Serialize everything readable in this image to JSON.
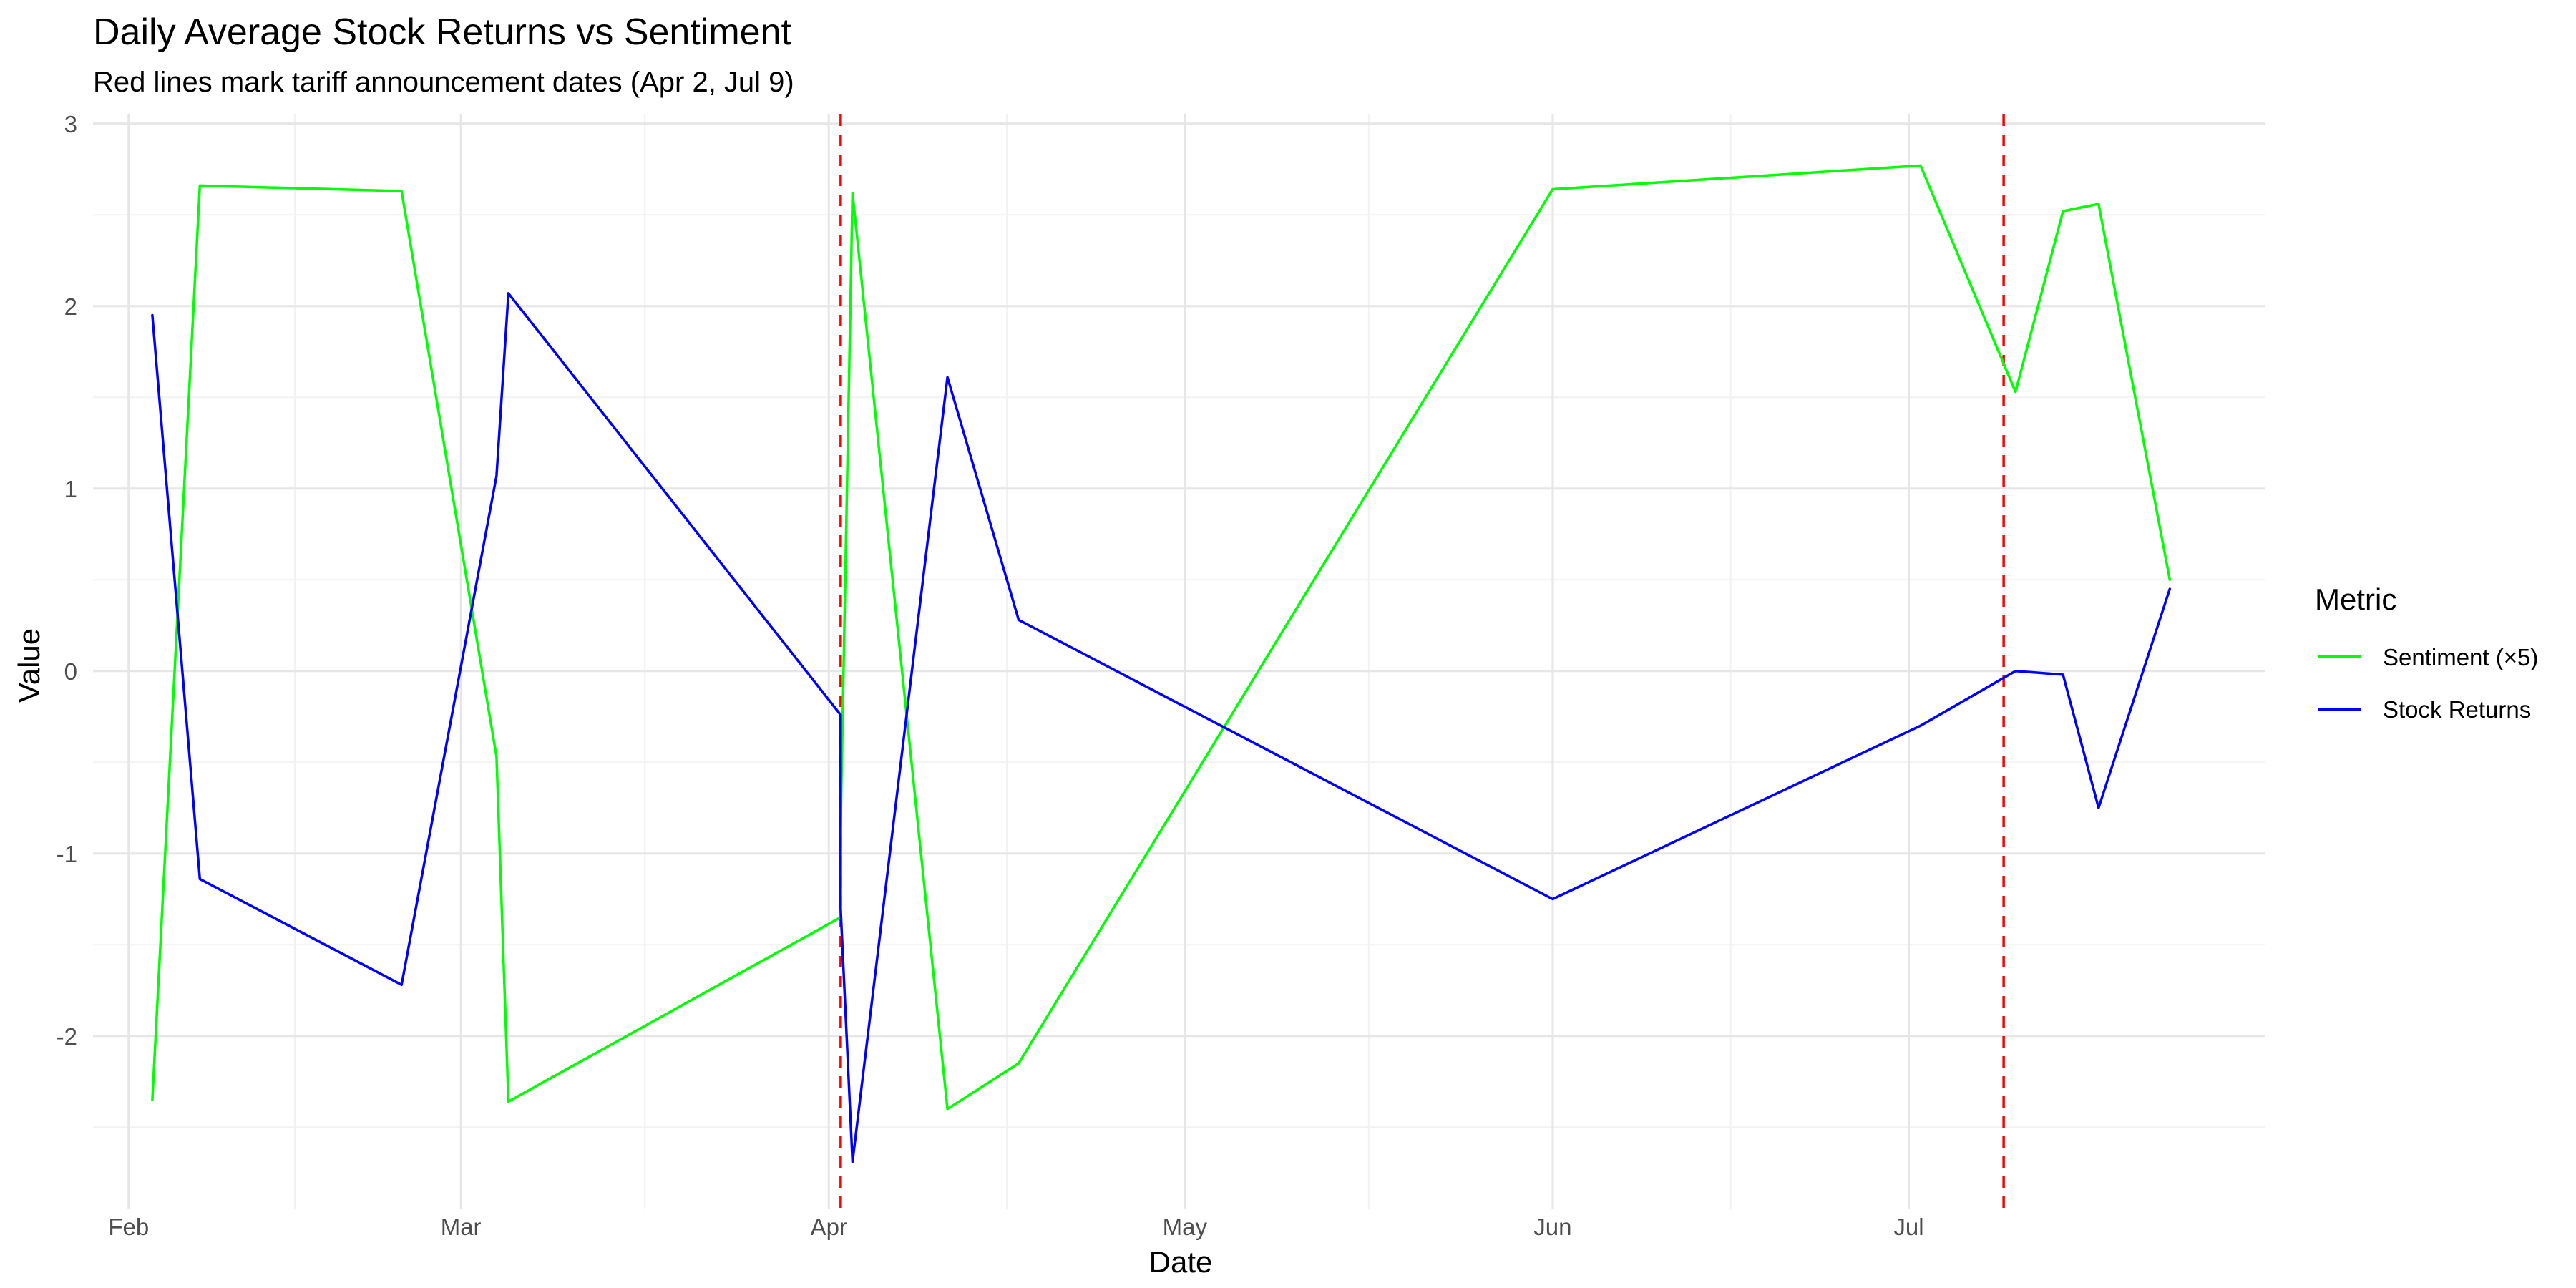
{
  "chart_data": {
    "type": "line",
    "title": "Daily Average Stock Returns vs Sentiment",
    "subtitle": "Red lines mark tariff announcement dates (Apr 2, Jul 9)",
    "xlabel": "Date",
    "ylabel": "Value",
    "x_type": "date",
    "xlim": [
      "2025-01-29",
      "2025-07-31"
    ],
    "ylim": [
      -2.95,
      3.05
    ],
    "x_ticks": [
      {
        "date": "2025-02-01",
        "label": "Feb"
      },
      {
        "date": "2025-03-01",
        "label": "Mar"
      },
      {
        "date": "2025-04-01",
        "label": "Apr"
      },
      {
        "date": "2025-05-01",
        "label": "May"
      },
      {
        "date": "2025-06-01",
        "label": "Jun"
      },
      {
        "date": "2025-07-01",
        "label": "Jul"
      }
    ],
    "y_ticks": [
      {
        "value": -2,
        "label": "-2"
      },
      {
        "value": -1,
        "label": "-1"
      },
      {
        "value": 0,
        "label": "0"
      },
      {
        "value": 1,
        "label": "1"
      },
      {
        "value": 2,
        "label": "2"
      },
      {
        "value": 3,
        "label": "3"
      }
    ],
    "y_minor": [
      -2.5,
      -1.5,
      -0.5,
      0.5,
      1.5,
      2.5
    ],
    "grid": true,
    "legend": {
      "title": "Metric",
      "position": "right"
    },
    "vlines": [
      {
        "date": "2025-04-02",
        "color": "#ff0000"
      },
      {
        "date": "2025-07-09",
        "color": "#ff0000"
      }
    ],
    "series": [
      {
        "name": "Sentiment (×5)",
        "color": "#00ff00",
        "points": [
          {
            "x": "2025-02-03",
            "y": -2.35
          },
          {
            "x": "2025-02-07",
            "y": 2.66
          },
          {
            "x": "2025-02-24",
            "y": 2.63
          },
          {
            "x": "2025-03-04",
            "y": -0.47
          },
          {
            "x": "2025-03-05",
            "y": -2.36
          },
          {
            "x": "2025-04-02",
            "y": -1.35
          },
          {
            "x": "2025-04-02",
            "y": -0.85
          },
          {
            "x": "2025-04-03",
            "y": 2.62
          },
          {
            "x": "2025-04-11",
            "y": -2.4
          },
          {
            "x": "2025-04-17",
            "y": -2.15
          },
          {
            "x": "2025-06-01",
            "y": 2.64
          },
          {
            "x": "2025-07-02",
            "y": 2.77
          },
          {
            "x": "2025-07-10",
            "y": 1.53
          },
          {
            "x": "2025-07-14",
            "y": 2.52
          },
          {
            "x": "2025-07-17",
            "y": 2.56
          },
          {
            "x": "2025-07-23",
            "y": 0.5
          }
        ]
      },
      {
        "name": "Stock Returns",
        "color": "#0000ff",
        "points": [
          {
            "x": "2025-02-03",
            "y": 1.95
          },
          {
            "x": "2025-02-07",
            "y": -1.14
          },
          {
            "x": "2025-02-24",
            "y": -1.72
          },
          {
            "x": "2025-03-04",
            "y": 1.07
          },
          {
            "x": "2025-03-05",
            "y": 2.07
          },
          {
            "x": "2025-04-02",
            "y": -0.24
          },
          {
            "x": "2025-04-02",
            "y": -1.3
          },
          {
            "x": "2025-04-03",
            "y": -2.69
          },
          {
            "x": "2025-04-11",
            "y": 1.61
          },
          {
            "x": "2025-04-17",
            "y": 0.28
          },
          {
            "x": "2025-06-01",
            "y": -1.25
          },
          {
            "x": "2025-07-02",
            "y": -0.3
          },
          {
            "x": "2025-07-10",
            "y": 0.0
          },
          {
            "x": "2025-07-14",
            "y": -0.02
          },
          {
            "x": "2025-07-17",
            "y": -0.75
          },
          {
            "x": "2025-07-23",
            "y": 0.45
          }
        ]
      }
    ]
  }
}
